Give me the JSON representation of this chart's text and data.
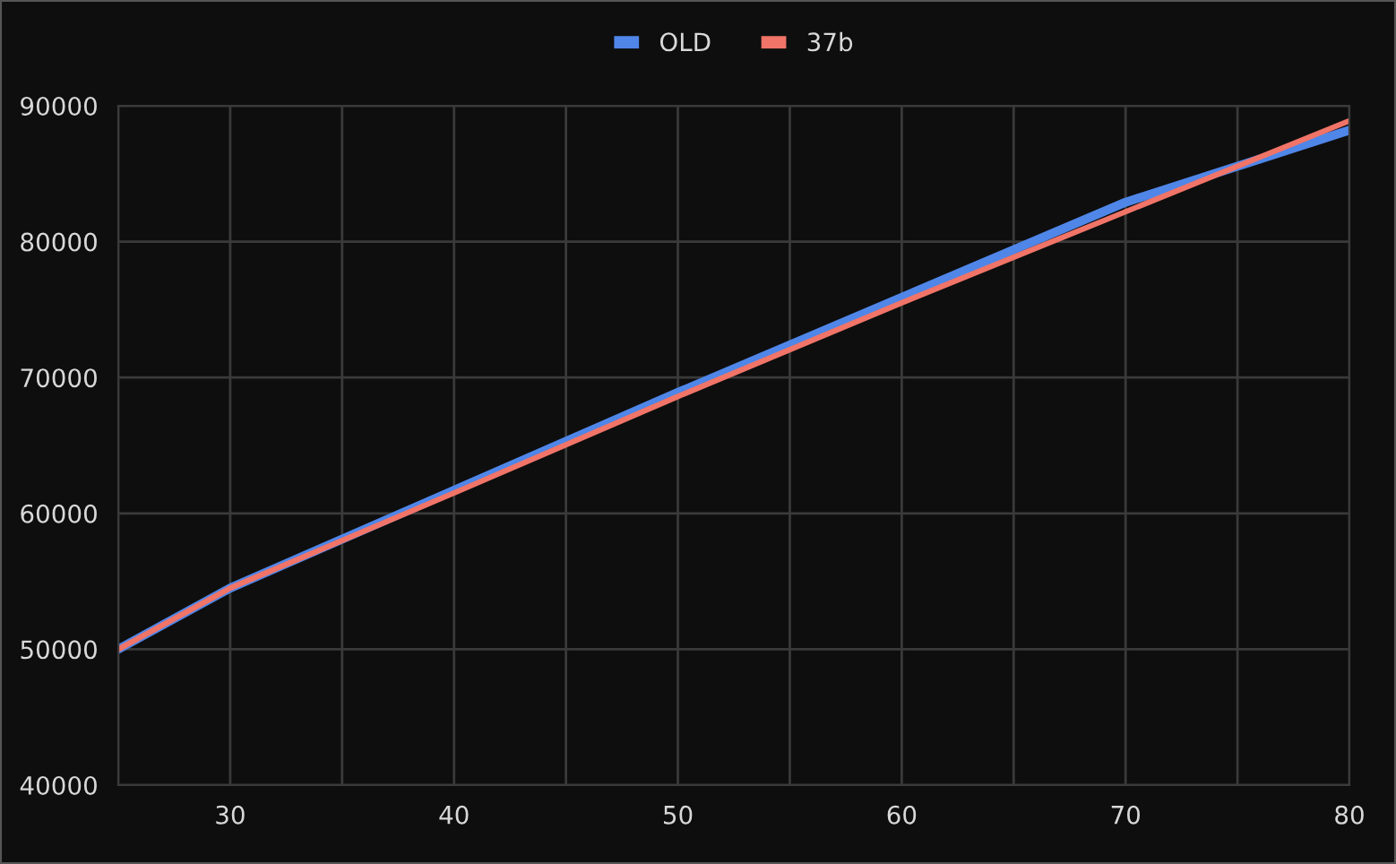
{
  "chart_data": {
    "type": "line",
    "x": [
      25,
      30,
      40,
      50,
      60,
      70,
      80
    ],
    "series": [
      {
        "name": "OLD",
        "color": "#4f86e8",
        "values": [
          50000,
          54500,
          61700,
          68900,
          75900,
          82900,
          88200
        ]
      },
      {
        "name": "37b",
        "color": "#f07467",
        "values": [
          50000,
          54500,
          61500,
          68600,
          75500,
          82200,
          88900
        ]
      }
    ],
    "xlim": [
      25,
      80
    ],
    "xticks": [
      {
        "value": 25,
        "label": null
      },
      30,
      {
        "value": 35,
        "label": null
      },
      40,
      {
        "value": 45,
        "label": null
      },
      50,
      {
        "value": 55,
        "label": null
      },
      60,
      {
        "value": 65,
        "label": null
      },
      70,
      {
        "value": 75,
        "label": null
      },
      80
    ],
    "ylim": [
      40000,
      90000
    ],
    "yticks": [
      40000,
      50000,
      60000,
      70000,
      80000,
      90000
    ],
    "grid": true,
    "legend": "top",
    "marker": "none",
    "line_style": "solid"
  }
}
